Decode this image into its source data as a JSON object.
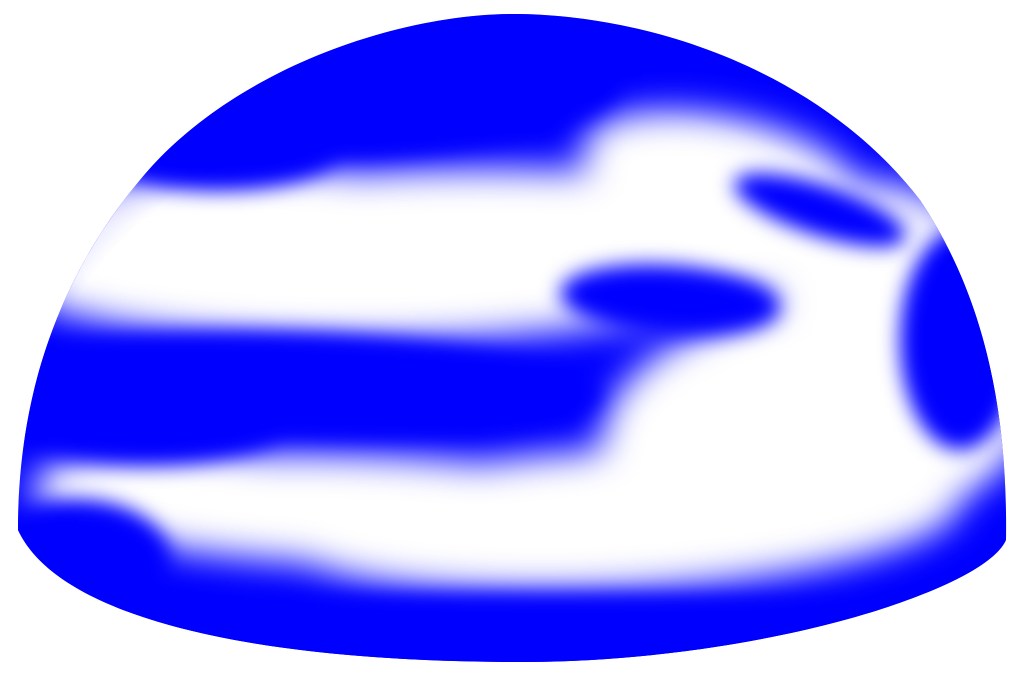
{
  "image": {
    "subject": "dome",
    "colors": {
      "background": "#ffffff",
      "primary": "#0000ff",
      "secondary": "#ffffff"
    }
  }
}
